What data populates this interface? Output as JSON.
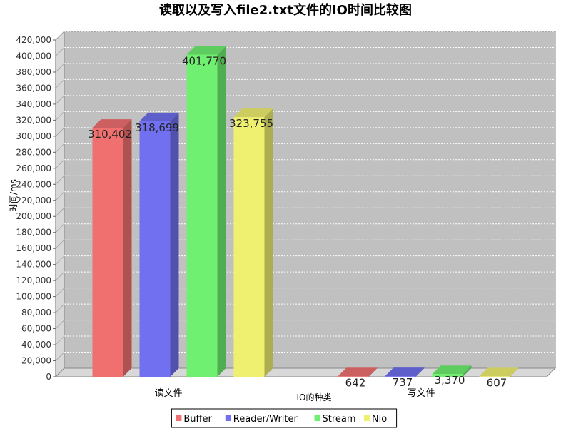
{
  "chart_data": {
    "type": "bar",
    "title": "读取以及写入file2.txt文件的IO时间比较图",
    "xlabel": "IO的种类",
    "ylabel": "时间/ms",
    "categories": [
      "读文件",
      "写文件"
    ],
    "series": [
      {
        "name": "Buffer",
        "color": "#f07070",
        "values": [
          310402,
          642
        ],
        "labels": [
          "310,402",
          "642"
        ]
      },
      {
        "name": "Reader/Writer",
        "color": "#7070f0",
        "values": [
          318699,
          737
        ],
        "labels": [
          "318,699",
          "737"
        ]
      },
      {
        "name": "Stream",
        "color": "#70f070",
        "values": [
          401770,
          3370
        ],
        "labels": [
          "401,770",
          "3,370"
        ]
      },
      {
        "name": "Nio",
        "color": "#f0f070",
        "values": [
          323755,
          607
        ],
        "labels": [
          "323,755",
          "607"
        ]
      }
    ],
    "ylim": [
      0,
      420000
    ],
    "ytick_step": 20000,
    "grid": true,
    "legend_position": "bottom",
    "plot_background": "#c0c0c0"
  }
}
